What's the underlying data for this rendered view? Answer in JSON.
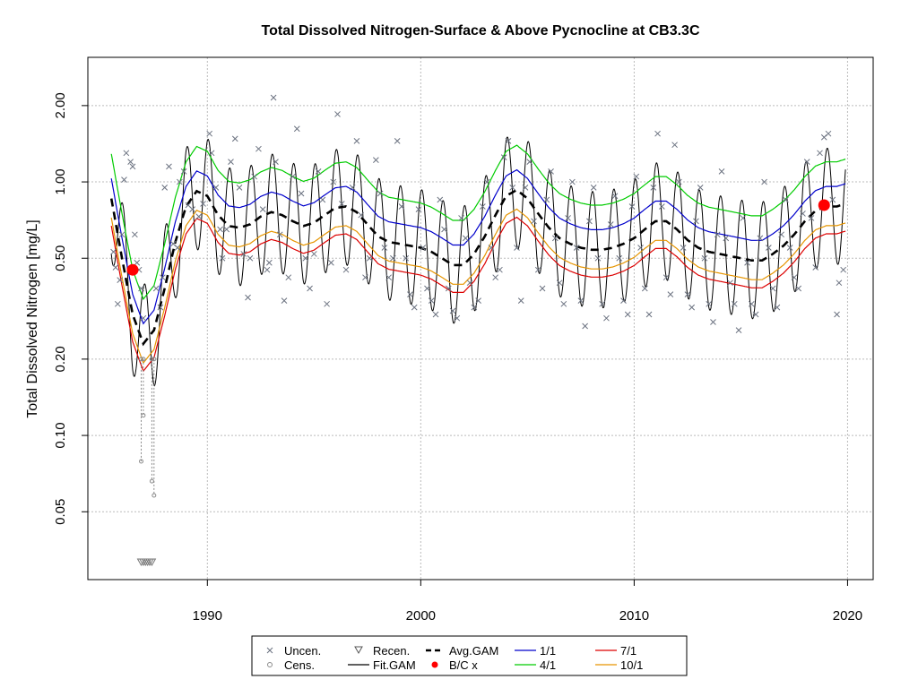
{
  "chart_data": {
    "type": "scatter",
    "title": "Total Dissolved Nitrogen-Surface & Above Pycnocline at CB3.3C",
    "ylabel": "Total Dissolved Nitrogen [mg/L]",
    "xlabel": "",
    "y_scale": "log",
    "xlim": [
      1984.4,
      2021.2
    ],
    "ylim": [
      0.027,
      3.1
    ],
    "x_ticks": [
      {
        "value": 1990,
        "label": "1990"
      },
      {
        "value": 2000,
        "label": "2000"
      },
      {
        "value": 2010,
        "label": "2010"
      },
      {
        "value": 2020,
        "label": "2020"
      }
    ],
    "y_ticks": [
      {
        "value": 0.05,
        "label": "0.05"
      },
      {
        "value": 0.1,
        "label": "0.10"
      },
      {
        "value": 0.2,
        "label": "0.20"
      },
      {
        "value": 0.5,
        "label": "0.50"
      },
      {
        "value": 1.0,
        "label": "1.00"
      },
      {
        "value": 2.0,
        "label": "2.00"
      }
    ],
    "grid": true,
    "legend_position": "bottom-center",
    "legend": [
      {
        "label": "Uncen.",
        "symbol": "x"
      },
      {
        "label": "Recen.",
        "symbol": "triangle"
      },
      {
        "label": "Avg.GAM",
        "symbol": "dashed"
      },
      {
        "label": "1/1",
        "symbol": "line",
        "color": "#0000cc"
      },
      {
        "label": "7/1",
        "symbol": "line",
        "color": "#dd0000"
      },
      {
        "label": "Cens.",
        "symbol": "circle"
      },
      {
        "label": "Fit.GAM",
        "symbol": "line"
      },
      {
        "label": "B/C x",
        "symbol": "dot",
        "color": "#ff0000"
      },
      {
        "label": "4/1",
        "symbol": "line",
        "color": "#00cc00"
      },
      {
        "label": "10/1",
        "symbol": "line",
        "color": "#e69500"
      }
    ],
    "colors": {
      "uncensored": "#6b7280",
      "censored": "#8a8a8a",
      "avg_gam": "#000000",
      "fit_gam": "#000000",
      "bc": "#ff0000",
      "jan": "#0000cc",
      "apr": "#00cc00",
      "jul": "#dd0000",
      "oct": "#e69500"
    },
    "avg_gam": {
      "x": [
        1985.5,
        1986.0,
        1986.5,
        1987.0,
        1987.5,
        1988.0,
        1988.5,
        1989.0,
        1989.5,
        1990.0,
        1990.5,
        1991.0,
        1991.5,
        1992.0,
        1992.5,
        1993.0,
        1993.5,
        1994.0,
        1994.5,
        1995.0,
        1995.5,
        1996.0,
        1996.5,
        1997.0,
        1997.5,
        1998.0,
        1998.5,
        1999.0,
        1999.5,
        2000.0,
        2000.5,
        2001.0,
        2001.5,
        2002.0,
        2002.5,
        2003.0,
        2003.5,
        2004.0,
        2004.5,
        2005.0,
        2005.5,
        2006.0,
        2006.5,
        2007.0,
        2007.5,
        2008.0,
        2008.5,
        2009.0,
        2009.5,
        2010.0,
        2010.5,
        2011.0,
        2011.5,
        2012.0,
        2012.5,
        2013.0,
        2013.5,
        2014.0,
        2014.5,
        2015.0,
        2015.5,
        2016.0,
        2016.5,
        2017.0,
        2017.5,
        2018.0,
        2018.5,
        2019.0,
        2019.5,
        2019.9
      ],
      "y": [
        0.86,
        0.5,
        0.3,
        0.23,
        0.26,
        0.38,
        0.58,
        0.8,
        0.92,
        0.88,
        0.74,
        0.67,
        0.66,
        0.68,
        0.73,
        0.76,
        0.74,
        0.7,
        0.67,
        0.69,
        0.74,
        0.79,
        0.8,
        0.76,
        0.68,
        0.61,
        0.58,
        0.57,
        0.56,
        0.55,
        0.53,
        0.5,
        0.47,
        0.47,
        0.52,
        0.61,
        0.74,
        0.88,
        0.93,
        0.86,
        0.75,
        0.66,
        0.6,
        0.57,
        0.55,
        0.54,
        0.54,
        0.55,
        0.57,
        0.6,
        0.65,
        0.7,
        0.7,
        0.65,
        0.59,
        0.55,
        0.53,
        0.52,
        0.51,
        0.5,
        0.49,
        0.49,
        0.52,
        0.56,
        0.62,
        0.7,
        0.77,
        0.8,
        0.8,
        0.82
      ]
    },
    "seasonal_ratios": {
      "jan": 1.2,
      "apr": 1.5,
      "jul": 0.78,
      "oct": 0.84
    },
    "fit_gam_amplitude_log10": 0.23,
    "bc_points": [
      {
        "x": 1986.5,
        "y": 0.45
      },
      {
        "x": 2018.9,
        "y": 0.81
      }
    ],
    "uncensored_points": [
      {
        "x": 1985.6,
        "y": 0.53
      },
      {
        "x": 1985.7,
        "y": 0.46
      },
      {
        "x": 1985.8,
        "y": 0.33
      },
      {
        "x": 1985.9,
        "y": 0.41
      },
      {
        "x": 1986.0,
        "y": 0.62
      },
      {
        "x": 1986.1,
        "y": 1.02
      },
      {
        "x": 1986.2,
        "y": 1.3
      },
      {
        "x": 1986.4,
        "y": 1.2
      },
      {
        "x": 1986.5,
        "y": 1.15
      },
      {
        "x": 1986.6,
        "y": 0.62
      },
      {
        "x": 1986.7,
        "y": 0.48
      },
      {
        "x": 1986.8,
        "y": 0.45
      },
      {
        "x": 1986.9,
        "y": 0.38
      },
      {
        "x": 1987.0,
        "y": 0.29
      },
      {
        "x": 1987.6,
        "y": 0.38
      },
      {
        "x": 1987.8,
        "y": 0.32
      },
      {
        "x": 1987.9,
        "y": 0.42
      },
      {
        "x": 1988.0,
        "y": 0.95
      },
      {
        "x": 1988.2,
        "y": 1.15
      },
      {
        "x": 1988.4,
        "y": 0.57
      },
      {
        "x": 1988.6,
        "y": 0.55
      },
      {
        "x": 1988.7,
        "y": 1.0
      },
      {
        "x": 1988.9,
        "y": 1.1
      },
      {
        "x": 1989.1,
        "y": 0.81
      },
      {
        "x": 1989.3,
        "y": 0.78
      },
      {
        "x": 1989.6,
        "y": 0.73
      },
      {
        "x": 1989.8,
        "y": 0.82
      },
      {
        "x": 1990.1,
        "y": 1.55
      },
      {
        "x": 1990.2,
        "y": 1.3
      },
      {
        "x": 1990.4,
        "y": 0.95
      },
      {
        "x": 1990.6,
        "y": 0.65
      },
      {
        "x": 1990.7,
        "y": 0.5
      },
      {
        "x": 1990.9,
        "y": 0.65
      },
      {
        "x": 1991.1,
        "y": 1.2
      },
      {
        "x": 1991.3,
        "y": 1.48
      },
      {
        "x": 1991.5,
        "y": 0.95
      },
      {
        "x": 1991.7,
        "y": 0.52
      },
      {
        "x": 1991.9,
        "y": 0.35
      },
      {
        "x": 1992.0,
        "y": 0.5
      },
      {
        "x": 1992.2,
        "y": 1.05
      },
      {
        "x": 1992.4,
        "y": 1.35
      },
      {
        "x": 1992.6,
        "y": 0.78
      },
      {
        "x": 1992.8,
        "y": 0.45
      },
      {
        "x": 1992.9,
        "y": 0.48
      },
      {
        "x": 1993.1,
        "y": 2.15
      },
      {
        "x": 1993.2,
        "y": 1.2
      },
      {
        "x": 1993.4,
        "y": 0.62
      },
      {
        "x": 1993.6,
        "y": 0.34
      },
      {
        "x": 1993.8,
        "y": 0.42
      },
      {
        "x": 1994.0,
        "y": 1.05
      },
      {
        "x": 1994.2,
        "y": 1.62
      },
      {
        "x": 1994.4,
        "y": 0.9
      },
      {
        "x": 1994.6,
        "y": 0.5
      },
      {
        "x": 1994.8,
        "y": 0.38
      },
      {
        "x": 1995.0,
        "y": 0.52
      },
      {
        "x": 1995.2,
        "y": 1.1
      },
      {
        "x": 1995.4,
        "y": 0.85
      },
      {
        "x": 1995.6,
        "y": 0.33
      },
      {
        "x": 1995.8,
        "y": 0.48
      },
      {
        "x": 1995.9,
        "y": 1.0
      },
      {
        "x": 1996.1,
        "y": 1.85
      },
      {
        "x": 1996.3,
        "y": 0.82
      },
      {
        "x": 1996.5,
        "y": 0.45
      },
      {
        "x": 1996.8,
        "y": 0.95
      },
      {
        "x": 1997.0,
        "y": 1.45
      },
      {
        "x": 1997.2,
        "y": 0.74
      },
      {
        "x": 1997.4,
        "y": 0.42
      },
      {
        "x": 1997.6,
        "y": 0.5
      },
      {
        "x": 1997.9,
        "y": 1.22
      },
      {
        "x": 1998.1,
        "y": 0.9
      },
      {
        "x": 1998.3,
        "y": 0.55
      },
      {
        "x": 1998.5,
        "y": 0.42
      },
      {
        "x": 1998.7,
        "y": 0.5
      },
      {
        "x": 1998.9,
        "y": 1.45
      },
      {
        "x": 1999.1,
        "y": 0.8
      },
      {
        "x": 1999.3,
        "y": 0.5
      },
      {
        "x": 1999.5,
        "y": 0.36
      },
      {
        "x": 1999.7,
        "y": 0.32
      },
      {
        "x": 1999.9,
        "y": 0.78
      },
      {
        "x": 2000.1,
        "y": 0.55
      },
      {
        "x": 2000.3,
        "y": 0.38
      },
      {
        "x": 2000.5,
        "y": 0.34
      },
      {
        "x": 2000.7,
        "y": 0.3
      },
      {
        "x": 2000.9,
        "y": 0.85
      },
      {
        "x": 2001.1,
        "y": 0.65
      },
      {
        "x": 2001.3,
        "y": 0.38
      },
      {
        "x": 2001.5,
        "y": 0.31
      },
      {
        "x": 2001.7,
        "y": 0.29
      },
      {
        "x": 2001.9,
        "y": 0.72
      },
      {
        "x": 2002.1,
        "y": 0.6
      },
      {
        "x": 2002.3,
        "y": 0.4
      },
      {
        "x": 2002.5,
        "y": 0.32
      },
      {
        "x": 2002.7,
        "y": 0.34
      },
      {
        "x": 2002.9,
        "y": 0.8
      },
      {
        "x": 2003.1,
        "y": 1.0
      },
      {
        "x": 2003.3,
        "y": 0.55
      },
      {
        "x": 2003.5,
        "y": 0.42
      },
      {
        "x": 2003.7,
        "y": 0.45
      },
      {
        "x": 2003.9,
        "y": 1.25
      },
      {
        "x": 2004.1,
        "y": 1.45
      },
      {
        "x": 2004.3,
        "y": 0.95
      },
      {
        "x": 2004.5,
        "y": 0.55
      },
      {
        "x": 2004.7,
        "y": 0.34
      },
      {
        "x": 2004.9,
        "y": 0.95
      },
      {
        "x": 2005.1,
        "y": 1.2
      },
      {
        "x": 2005.3,
        "y": 0.7
      },
      {
        "x": 2005.5,
        "y": 0.45
      },
      {
        "x": 2005.7,
        "y": 0.38
      },
      {
        "x": 2005.9,
        "y": 0.85
      },
      {
        "x": 2006.1,
        "y": 1.1
      },
      {
        "x": 2006.3,
        "y": 0.6
      },
      {
        "x": 2006.5,
        "y": 0.4
      },
      {
        "x": 2006.7,
        "y": 0.33
      },
      {
        "x": 2006.9,
        "y": 0.72
      },
      {
        "x": 2007.1,
        "y": 1.0
      },
      {
        "x": 2007.3,
        "y": 0.55
      },
      {
        "x": 2007.5,
        "y": 0.34
      },
      {
        "x": 2007.7,
        "y": 0.27
      },
      {
        "x": 2007.9,
        "y": 0.7
      },
      {
        "x": 2008.1,
        "y": 0.95
      },
      {
        "x": 2008.3,
        "y": 0.5
      },
      {
        "x": 2008.5,
        "y": 0.33
      },
      {
        "x": 2008.7,
        "y": 0.29
      },
      {
        "x": 2008.9,
        "y": 0.68
      },
      {
        "x": 2009.1,
        "y": 0.88
      },
      {
        "x": 2009.3,
        "y": 0.5
      },
      {
        "x": 2009.5,
        "y": 0.34
      },
      {
        "x": 2009.7,
        "y": 0.3
      },
      {
        "x": 2009.9,
        "y": 0.8
      },
      {
        "x": 2010.1,
        "y": 1.05
      },
      {
        "x": 2010.3,
        "y": 0.55
      },
      {
        "x": 2010.5,
        "y": 0.38
      },
      {
        "x": 2010.7,
        "y": 0.3
      },
      {
        "x": 2010.9,
        "y": 0.95
      },
      {
        "x": 2011.1,
        "y": 1.55
      },
      {
        "x": 2011.3,
        "y": 0.8
      },
      {
        "x": 2011.5,
        "y": 0.42
      },
      {
        "x": 2011.7,
        "y": 0.36
      },
      {
        "x": 2011.9,
        "y": 1.4
      },
      {
        "x": 2012.1,
        "y": 1.0
      },
      {
        "x": 2012.3,
        "y": 0.55
      },
      {
        "x": 2012.5,
        "y": 0.36
      },
      {
        "x": 2012.7,
        "y": 0.32
      },
      {
        "x": 2012.9,
        "y": 0.7
      },
      {
        "x": 2013.1,
        "y": 0.95
      },
      {
        "x": 2013.3,
        "y": 0.5
      },
      {
        "x": 2013.5,
        "y": 0.33
      },
      {
        "x": 2013.7,
        "y": 0.28
      },
      {
        "x": 2013.9,
        "y": 0.62
      },
      {
        "x": 2014.1,
        "y": 1.1
      },
      {
        "x": 2014.3,
        "y": 0.6
      },
      {
        "x": 2014.5,
        "y": 0.4
      },
      {
        "x": 2014.7,
        "y": 0.33
      },
      {
        "x": 2014.9,
        "y": 0.26
      },
      {
        "x": 2015.1,
        "y": 0.72
      },
      {
        "x": 2015.3,
        "y": 0.48
      },
      {
        "x": 2015.5,
        "y": 0.33
      },
      {
        "x": 2015.7,
        "y": 0.3
      },
      {
        "x": 2015.9,
        "y": 0.6
      },
      {
        "x": 2016.1,
        "y": 1.0
      },
      {
        "x": 2016.3,
        "y": 0.55
      },
      {
        "x": 2016.5,
        "y": 0.38
      },
      {
        "x": 2016.7,
        "y": 0.32
      },
      {
        "x": 2016.9,
        "y": 0.62
      },
      {
        "x": 2017.1,
        "y": 0.85
      },
      {
        "x": 2017.3,
        "y": 0.55
      },
      {
        "x": 2017.5,
        "y": 0.42
      },
      {
        "x": 2017.7,
        "y": 0.38
      },
      {
        "x": 2017.9,
        "y": 0.75
      },
      {
        "x": 2018.1,
        "y": 1.2
      },
      {
        "x": 2018.3,
        "y": 0.72
      },
      {
        "x": 2018.5,
        "y": 0.46
      },
      {
        "x": 2018.7,
        "y": 1.3
      },
      {
        "x": 2018.9,
        "y": 1.5
      },
      {
        "x": 2019.1,
        "y": 1.55
      },
      {
        "x": 2019.3,
        "y": 0.85
      },
      {
        "x": 2019.5,
        "y": 0.3
      },
      {
        "x": 2019.6,
        "y": 0.4
      },
      {
        "x": 2019.8,
        "y": 0.45
      }
    ],
    "censored_points": [
      {
        "x": 1986.9,
        "y": 0.2,
        "low": 0.079
      },
      {
        "x": 1987.0,
        "y": 0.2,
        "low": 0.12
      },
      {
        "x": 1987.4,
        "y": 0.2,
        "low": 0.066
      },
      {
        "x": 1987.5,
        "y": 0.2,
        "low": 0.058
      }
    ],
    "recensored_points": [
      {
        "x": 1986.9
      },
      {
        "x": 1987.0
      },
      {
        "x": 1987.1
      },
      {
        "x": 1987.2
      },
      {
        "x": 1987.3
      },
      {
        "x": 1987.4
      }
    ]
  }
}
